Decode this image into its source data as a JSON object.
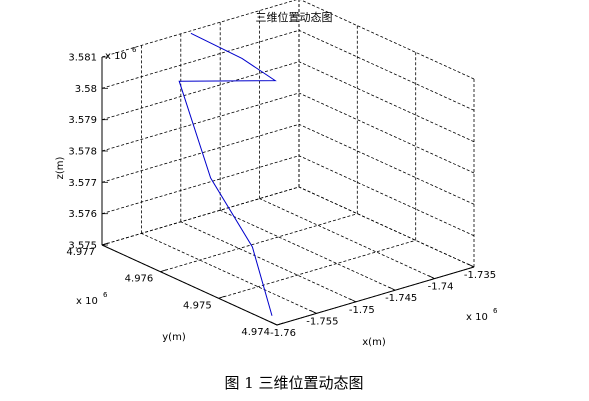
{
  "chart_data": {
    "type": "line3d",
    "title": "三维位置动态图",
    "xlabel": "x(m)",
    "ylabel": "y(m)",
    "zlabel": "z(m)",
    "x_multiplier_base": "x 10",
    "x_multiplier_exp": "6",
    "y_multiplier_base": "x 10",
    "y_multiplier_exp": "6",
    "z_multiplier_base": "x 10",
    "z_multiplier_exp": "6",
    "x_ticks": [
      "-1.76",
      "-1.755",
      "-1.75",
      "-1.745",
      "-1.74",
      "-1.735"
    ],
    "y_ticks": [
      "4.974",
      "4.975",
      "4.976",
      "4.977"
    ],
    "z_ticks": [
      "3.575",
      "3.576",
      "3.577",
      "3.578",
      "3.579",
      "3.58",
      "3.581"
    ],
    "xlim": [
      -1.76,
      -1.735
    ],
    "ylim": [
      4.974,
      4.977
    ],
    "zlim": [
      3.575,
      3.581
    ],
    "grid": true,
    "line_color": "#0000cc",
    "series": [
      {
        "x": [
          -1.7599,
          -1.7572,
          -1.7551,
          -1.7539,
          -1.7432,
          -1.7452,
          -1.7502
        ],
        "y": [
          4.9741,
          4.9748,
          4.9758,
          4.9765,
          4.9763,
          4.9766,
          4.9768
        ],
        "z": [
          3.5752,
          3.5766,
          3.5778,
          3.5802,
          3.5796,
          3.5802,
          3.5812
        ]
      }
    ]
  },
  "caption": "图 1  三维位置动态图"
}
